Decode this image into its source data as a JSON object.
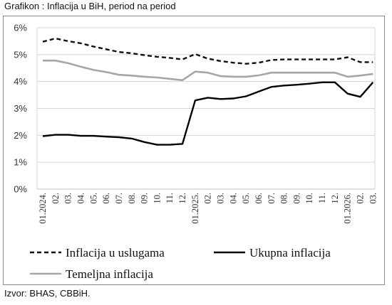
{
  "title": "Grafikon : Inflacija u BiH, period na period",
  "source": "Izvor: BHAS, CBBiH.",
  "chart_data": {
    "type": "line",
    "title": "Grafikon : Inflacija u BiH, period na period",
    "xlabel": "",
    "ylabel": "",
    "ylim": [
      0,
      6
    ],
    "yticks": [
      "0%",
      "1%",
      "2%",
      "3%",
      "4%",
      "5%",
      "6%"
    ],
    "grid": true,
    "legend_position": "bottom",
    "categories": [
      "01.2024.",
      "02.",
      "03.",
      "04.",
      "05.",
      "06.",
      "07.",
      "08.",
      "09.",
      "10.",
      "11.",
      "12.",
      "01.2025.",
      "02.",
      "03.",
      "04.",
      "05.",
      "06.",
      "07.",
      "08.",
      "09.",
      "10.",
      "11.",
      "12.",
      "01.2026.",
      "02.",
      "03."
    ],
    "series": [
      {
        "name": "Inflacija u uslugama",
        "style": "dashed",
        "color": "#111111",
        "values": [
          5.48,
          5.6,
          5.5,
          5.42,
          5.3,
          5.2,
          5.1,
          5.05,
          4.98,
          4.92,
          4.88,
          4.82,
          5.02,
          4.85,
          4.76,
          4.7,
          4.66,
          4.7,
          4.8,
          4.82,
          4.82,
          4.82,
          4.82,
          4.82,
          4.9,
          4.72,
          4.72
        ]
      },
      {
        "name": "Ukupna inflacija",
        "style": "solid",
        "color": "#000000",
        "values": [
          1.97,
          2.02,
          2.02,
          1.98,
          1.98,
          1.95,
          1.93,
          1.88,
          1.75,
          1.65,
          1.65,
          1.68,
          3.3,
          3.4,
          3.35,
          3.37,
          3.45,
          3.63,
          3.8,
          3.85,
          3.88,
          3.92,
          3.97,
          3.97,
          3.55,
          3.43,
          3.97
        ]
      },
      {
        "name": "Temeljna inflacija",
        "style": "solid",
        "color": "#a6a6a6",
        "values": [
          4.78,
          4.78,
          4.68,
          4.55,
          4.43,
          4.35,
          4.25,
          4.22,
          4.18,
          4.15,
          4.1,
          4.05,
          4.37,
          4.33,
          4.2,
          4.18,
          4.18,
          4.23,
          4.33,
          4.33,
          4.33,
          4.33,
          4.33,
          4.33,
          4.18,
          4.22,
          4.28
        ]
      }
    ]
  }
}
